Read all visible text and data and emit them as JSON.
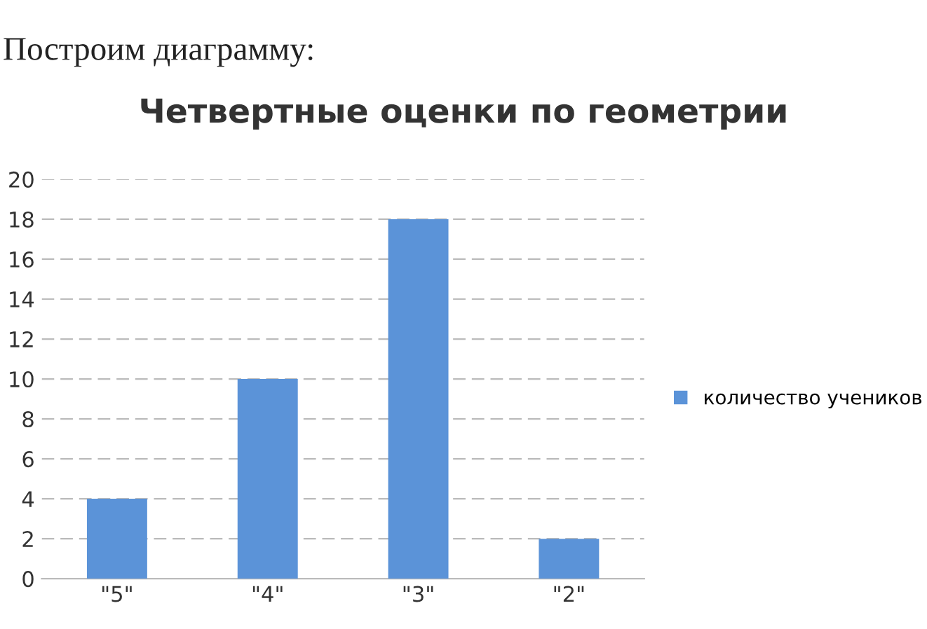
{
  "chart_data": {
    "type": "bar",
    "title": "Четвертные оценки по геометрии",
    "annotations": [
      "Построим диаграмму:"
    ],
    "categories": [
      "\"5\"",
      "\"4\"",
      "\"3\"",
      "\"2\""
    ],
    "series": [
      {
        "name": "количество учеников",
        "color": "#5b93d8",
        "values": [
          4,
          10,
          18,
          2
        ]
      }
    ],
    "ylim": [
      0,
      20
    ],
    "yticks": [
      0,
      2,
      4,
      6,
      8,
      10,
      12,
      14,
      16,
      18,
      20
    ],
    "grid": "y",
    "legend": "right"
  }
}
